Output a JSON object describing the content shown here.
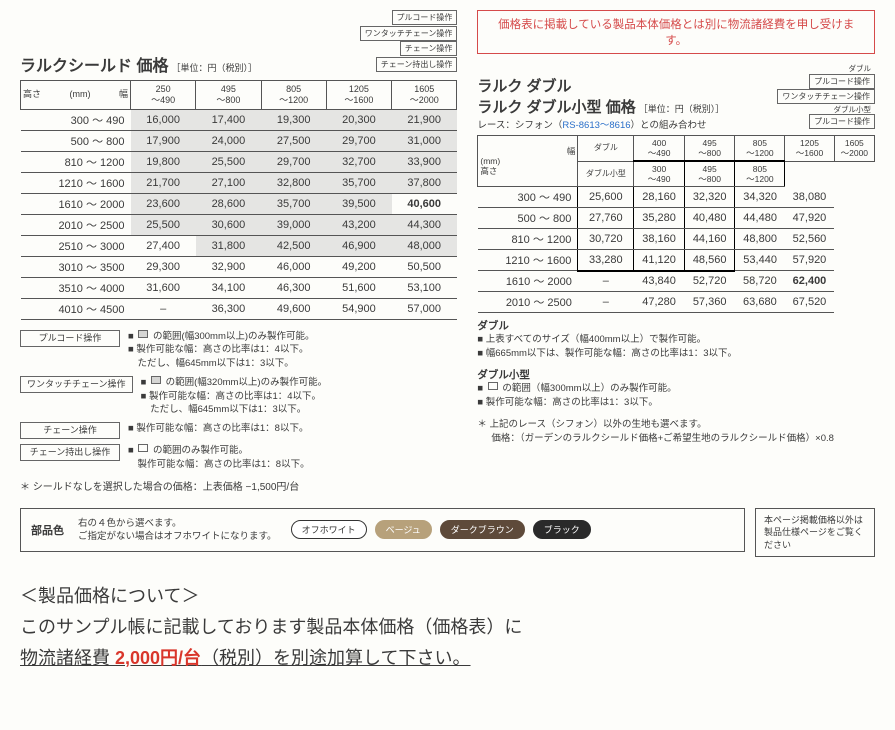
{
  "notice": "価格表に掲載している製品本体価格とは別に物流諸経費を申し受けます。",
  "left": {
    "title": "ラルクシールド 価格",
    "unit": "［単位：円（税別）］",
    "op_labels": [
      "プルコード操作",
      "ワンタッチチェーン操作",
      "チェーン操作",
      "チェーン持出し操作"
    ],
    "axis_w": "幅",
    "axis_h_mm": "(mm)",
    "axis_h": "高さ",
    "cols": [
      {
        "r1": "250",
        "r2": "〜490"
      },
      {
        "r1": "495",
        "r2": "〜800"
      },
      {
        "r1": "805",
        "r2": "〜1200"
      },
      {
        "r1": "1205",
        "r2": "〜1600"
      },
      {
        "r1": "1605",
        "r2": "〜2000"
      }
    ],
    "rows": [
      {
        "h": "300 〜 490",
        "v": [
          "16,000",
          "17,400",
          "19,300",
          "20,300",
          "21,900"
        ],
        "g": [
          0,
          1,
          2,
          3,
          4
        ]
      },
      {
        "h": "500 〜 800",
        "v": [
          "17,900",
          "24,000",
          "27,500",
          "29,700",
          "31,000"
        ],
        "g": [
          0,
          1,
          2,
          3,
          4
        ]
      },
      {
        "h": "810 〜 1200",
        "v": [
          "19,800",
          "25,500",
          "29,700",
          "32,700",
          "33,900"
        ],
        "g": [
          0,
          1,
          2,
          3,
          4
        ]
      },
      {
        "h": "1210 〜 1600",
        "v": [
          "21,700",
          "27,100",
          "32,800",
          "35,700",
          "37,800"
        ],
        "g": [
          0,
          1,
          2,
          3,
          4
        ]
      },
      {
        "h": "1610 〜 2000",
        "v": [
          "23,600",
          "28,600",
          "35,700",
          "39,500",
          "40,600"
        ],
        "g": [
          0,
          1,
          2,
          3
        ],
        "bold": [
          4
        ]
      },
      {
        "h": "2010 〜 2500",
        "v": [
          "25,500",
          "30,600",
          "39,000",
          "43,200",
          "44,300"
        ],
        "g": [
          0,
          1,
          2,
          3,
          4
        ]
      },
      {
        "h": "2510 〜 3000",
        "v": [
          "27,400",
          "31,800",
          "42,500",
          "46,900",
          "48,000"
        ],
        "g": [
          1,
          2,
          3,
          4
        ]
      },
      {
        "h": "3010 〜 3500",
        "v": [
          "29,300",
          "32,900",
          "46,000",
          "49,200",
          "50,500"
        ]
      },
      {
        "h": "3510 〜 4000",
        "v": [
          "31,600",
          "34,100",
          "46,300",
          "51,600",
          "53,100"
        ]
      },
      {
        "h": "4010 〜 4500",
        "v": [
          "–",
          "36,300",
          "49,600",
          "54,900",
          "57,000"
        ]
      }
    ],
    "notes": [
      {
        "label": "プルコード操作",
        "lines": [
          "の範囲(幅300mm以上)のみ製作可能。",
          "製作可能な幅：高さの比率は1：4以下。",
          "ただし、幅645mm以下は1：3以下。"
        ],
        "sq": "fill"
      },
      {
        "label": "ワンタッチチェーン操作",
        "lines": [
          "の範囲(幅320mm以上)のみ製作可能。",
          "製作可能な幅：高さの比率は1：4以下。",
          "ただし、幅645mm以下は1：3以下。"
        ],
        "sq": "fill"
      },
      {
        "label": "チェーン操作",
        "lines": [
          "製作可能な幅：高さの比率は1：8以下。"
        ]
      },
      {
        "label": "チェーン持出し操作",
        "lines": [
          "の範囲のみ製作可能。",
          "製作可能な幅：高さの比率は1：8以下。"
        ],
        "sq": "empty"
      }
    ],
    "foot": "＊ シールドなしを選択した場合の価格：上表価格 −1,500円/台"
  },
  "right": {
    "title1": "ラルク ダブル",
    "title2": "ラルク ダブル小型 価格",
    "unit": "［単位：円（税別）］",
    "op_labels_top": [
      "ダブル",
      "プルコード操作",
      "ワンタッチチェーン操作"
    ],
    "op_labels_bot": [
      "ダブル小型",
      "プルコード操作"
    ],
    "combo_pre": "レース：シフォン（",
    "combo_link": "RS-8613〜8616",
    "combo_post": "）との組み合わせ",
    "axis_w": "幅",
    "axis_h": "高さ",
    "axis_mm": "(mm)",
    "variant_a": "ダブル",
    "variant_b": "ダブル小型",
    "cols_a": [
      {
        "r1": "400",
        "r2": "〜490"
      },
      {
        "r1": "495",
        "r2": "〜800"
      },
      {
        "r1": "805",
        "r2": "〜1200"
      },
      {
        "r1": "1205",
        "r2": "〜1600"
      },
      {
        "r1": "1605",
        "r2": "〜2000"
      }
    ],
    "cols_b": [
      {
        "r1": "300",
        "r2": "〜490"
      },
      {
        "r1": "495",
        "r2": "〜800"
      },
      {
        "r1": "805",
        "r2": "〜1200"
      }
    ],
    "rows": [
      {
        "h": "300 〜 490",
        "v": [
          "25,600",
          "28,160",
          "32,320",
          "34,320",
          "38,080"
        ],
        "box": true
      },
      {
        "h": "500 〜 800",
        "v": [
          "27,760",
          "35,280",
          "40,480",
          "44,480",
          "47,920"
        ],
        "box": true
      },
      {
        "h": "810 〜 1200",
        "v": [
          "30,720",
          "38,160",
          "44,160",
          "48,800",
          "52,560"
        ],
        "box": true
      },
      {
        "h": "1210 〜 1600",
        "v": [
          "33,280",
          "41,120",
          "48,560",
          "53,440",
          "57,920"
        ],
        "box": true,
        "last": true
      },
      {
        "h": "1610 〜 2000",
        "v": [
          "–",
          "43,840",
          "52,720",
          "58,720",
          "62,400"
        ],
        "bold": [
          4
        ]
      },
      {
        "h": "2010 〜 2500",
        "v": [
          "–",
          "47,280",
          "57,360",
          "63,680",
          "67,520"
        ]
      }
    ],
    "sect1_label": "ダブル",
    "sect1_lines": [
      "上表すべてのサイズ（幅400mm以上）で製作可能。",
      "幅665mm以下は、製作可能な幅：高さの比率は1：3以下。"
    ],
    "sect2_label": "ダブル小型",
    "sect2_lines": [
      "の範囲（幅300mm以上）のみ製作可能。",
      "製作可能な幅：高さの比率は1：3以下。"
    ],
    "asterisk1": "＊ 上記のレース（シフォン）以外の生地も選べます。",
    "asterisk2": "価格：（ガーデンのラルクシールド価格+ご希望生地のラルクシールド価格）×0.8"
  },
  "colorbox": {
    "label": "部品色",
    "text1": "右の４色から選べます。",
    "text2": "ご指定がない場合はオフホワイトになります。",
    "chips": [
      "オフホワイト",
      "ベージュ",
      "ダークブラウン",
      "ブラック"
    ]
  },
  "sidenote": "本ページ掲載価格以外は製品仕様ページをご覧ください",
  "bignote": {
    "line1": "＜製品価格について＞",
    "line2a": "このサンプル帳に記載しております製品本体価格（価格表）に",
    "line3a": "物流諸経費 ",
    "line3b": "2,000円/台",
    "line3c": "（税別）を別途加算して下さい。"
  }
}
